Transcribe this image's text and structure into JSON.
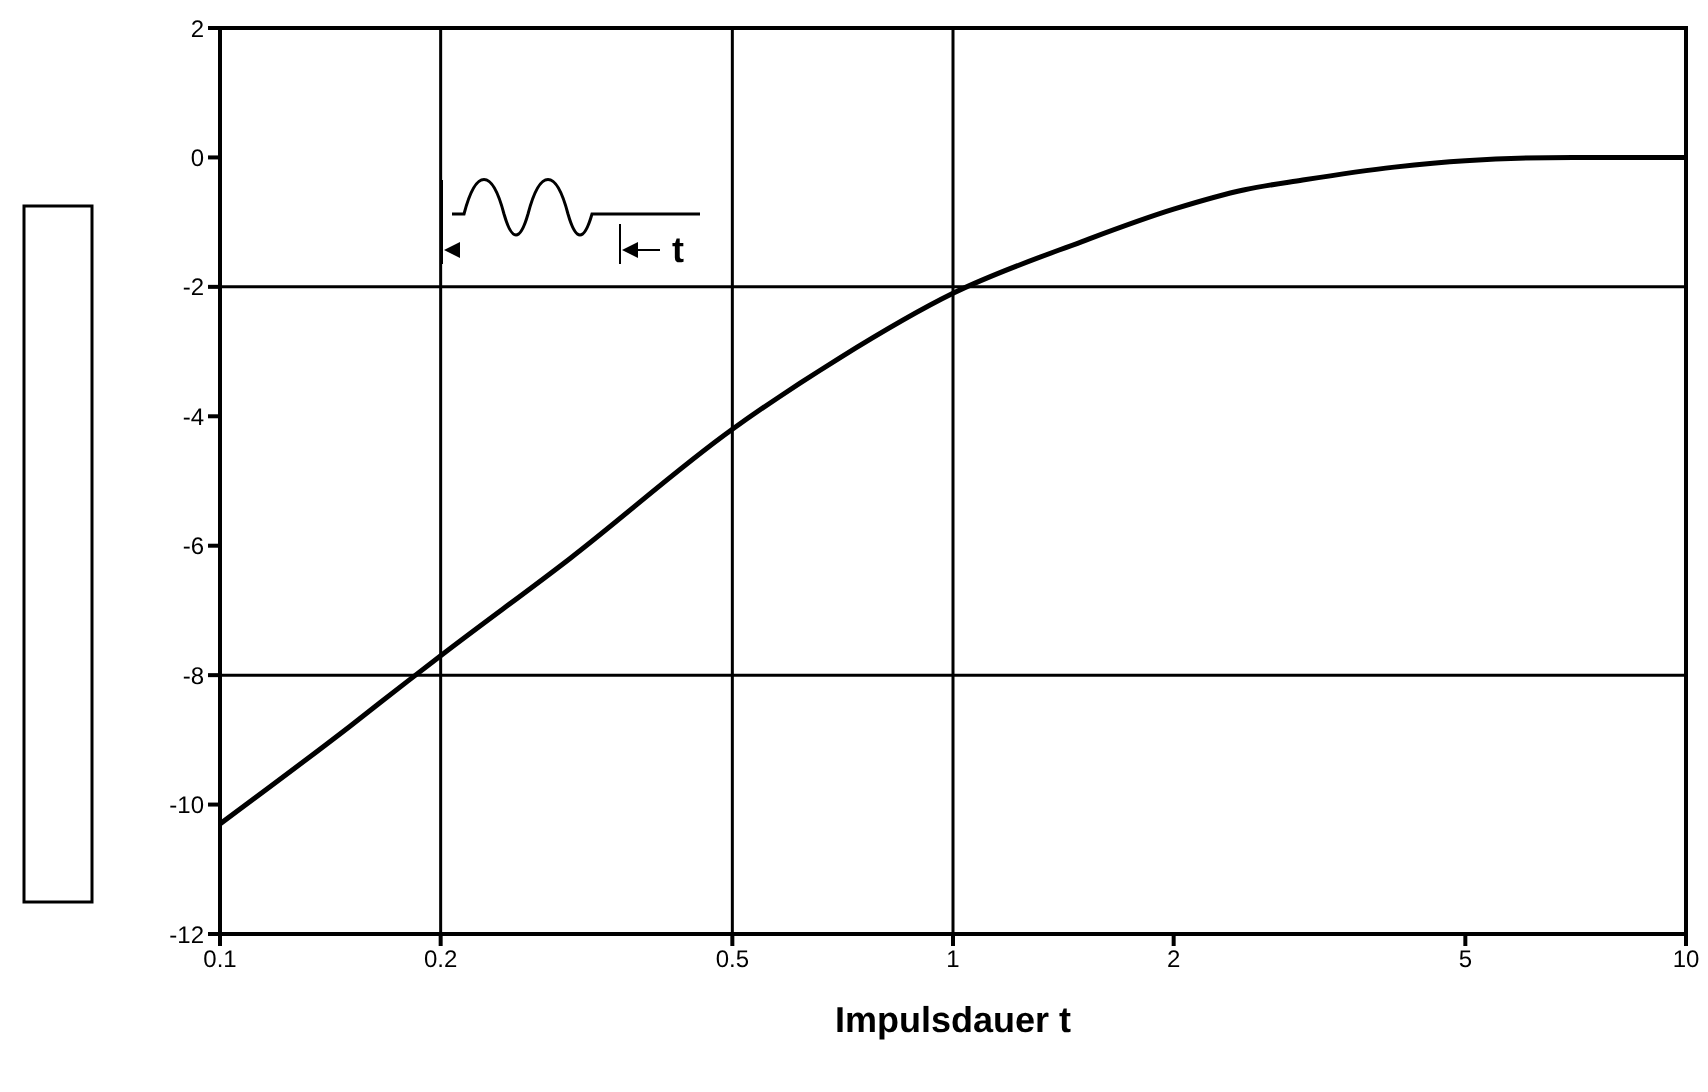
{
  "chart_data": {
    "type": "line",
    "xlabel": "Impulsdauer  t",
    "annotations": [
      "t"
    ],
    "x": [
      0.1,
      0.15,
      0.18,
      0.2,
      0.3,
      0.5,
      0.7,
      1,
      1.5,
      2,
      2.5,
      3,
      4,
      5,
      7,
      10
    ],
    "series": [
      {
        "color": "#000000",
        "values": [
          -10.3,
          -8.8,
          -8.1,
          -7.7,
          -6.2,
          -4.2,
          -3.1,
          -2.1,
          -1.3,
          -0.8,
          -0.5,
          -0.35,
          -0.15,
          -0.05,
          0,
          0
        ]
      }
    ],
    "log": "x",
    "xlim": [
      0.1,
      10
    ],
    "xticks": [
      0.1,
      0.2,
      0.5,
      1,
      2,
      5,
      10
    ],
    "ylim": [
      -12,
      2
    ],
    "yticks": [
      2,
      0,
      -2,
      -4,
      -6,
      -8,
      -10,
      -12
    ],
    "marker": "none",
    "line_style": "solid",
    "ref_lines": [
      {
        "axis": "y",
        "value": -2
      },
      {
        "axis": "y",
        "value": -8
      },
      {
        "axis": "x",
        "value": 0.2
      },
      {
        "axis": "x",
        "value": 0.5
      },
      {
        "axis": "x",
        "value": 1
      }
    ]
  }
}
